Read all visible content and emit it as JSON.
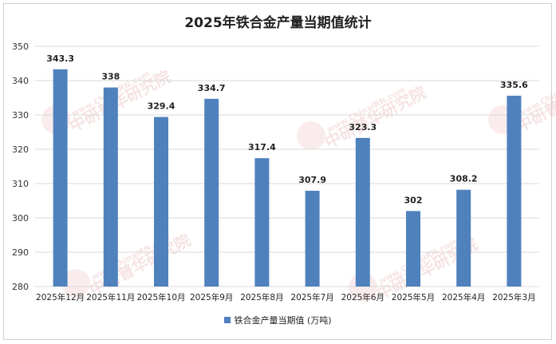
{
  "chart_data": {
    "type": "bar",
    "title": "2025年铁合金产量当期值统计",
    "categories": [
      "2025年12月",
      "2025年11月",
      "2025年10月",
      "2025年9月",
      "2025年8月",
      "2025年7月",
      "2025年6月",
      "2025年5月",
      "2025年4月",
      "2025年3月"
    ],
    "series": [
      {
        "name": "铁合金产量当期值 (万吨)",
        "values": [
          343.3,
          338,
          329.4,
          334.7,
          317.4,
          307.9,
          323.3,
          302,
          308.2,
          335.6
        ]
      }
    ],
    "value_labels": [
      "343.3",
      "338",
      "329.4",
      "334.7",
      "317.4",
      "307.9",
      "323.3",
      "302",
      "308.2",
      "335.6"
    ],
    "ylim": [
      280,
      350
    ],
    "yticks": [
      280,
      290,
      300,
      310,
      320,
      330,
      340,
      350
    ],
    "grid": true,
    "legend_position": "bottom",
    "bar_color": "#4f81bd"
  },
  "watermark": {
    "text_url": "www.ChinaIRN.com",
    "text_cn": "中研普华研究院",
    "logo": "CIRN"
  }
}
